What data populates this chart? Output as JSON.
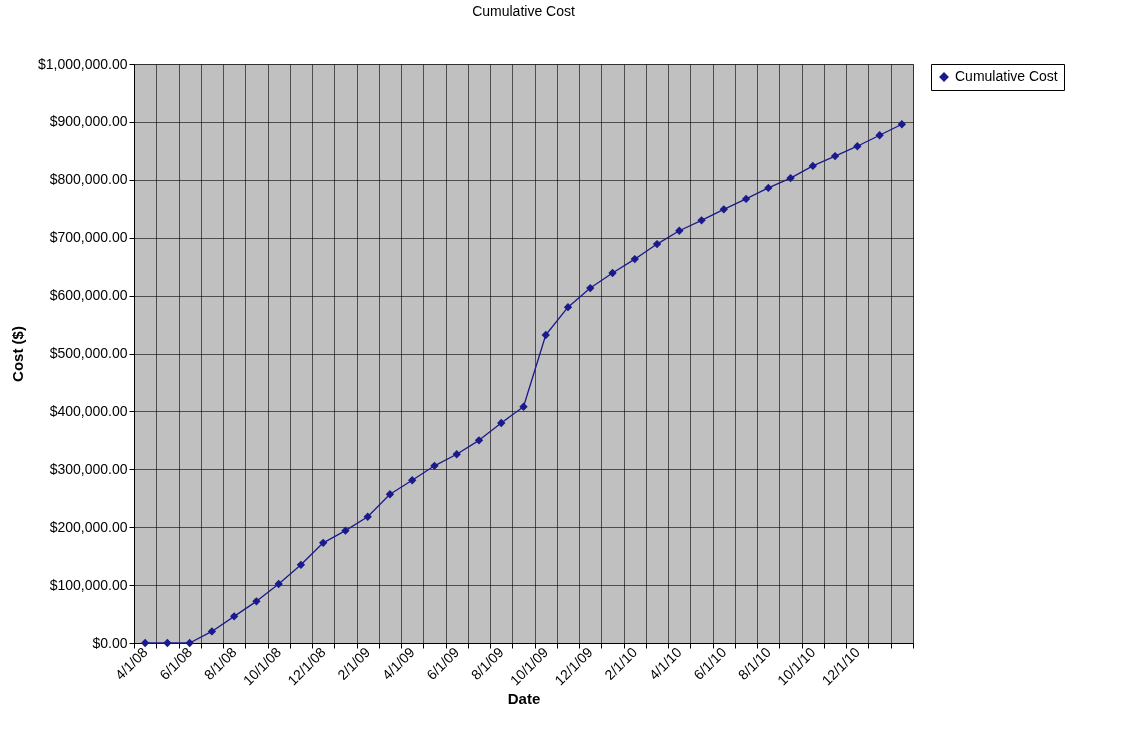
{
  "chart_data": {
    "type": "line",
    "title": "Cumulative Cost",
    "xlabel": "Date",
    "ylabel": "Cost ($)",
    "categories": [
      "4/1/08",
      null,
      "6/1/08",
      null,
      "8/1/08",
      null,
      "10/1/08",
      null,
      "12/1/08",
      null,
      "2/1/09",
      null,
      "4/1/09",
      null,
      "6/1/09",
      null,
      "8/1/09",
      null,
      "10/1/09",
      null,
      "12/1/09",
      null,
      "2/1/10",
      null,
      "4/1/10",
      null,
      "6/1/10",
      null,
      "8/1/10",
      null,
      "10/1/10",
      null,
      "12/1/10",
      null,
      null
    ],
    "series": [
      {
        "name": "Cumulative Cost",
        "color": "#1a1a8c",
        "values": [
          0,
          0,
          0,
          20000,
          46000,
          72000,
          102000,
          135000,
          173000,
          194000,
          218000,
          257000,
          281000,
          306000,
          326000,
          350000,
          380000,
          408000,
          532000,
          580000,
          613000,
          639000,
          663000,
          689000,
          712000,
          730000,
          749000,
          767000,
          786000,
          803000,
          824000,
          841000,
          858000,
          877000,
          896000
        ]
      }
    ],
    "ylim": [
      0,
      1000000
    ],
    "yticks": [
      {
        "value": 0,
        "label": "$0.00"
      },
      {
        "value": 100000,
        "label": "$100,000.00"
      },
      {
        "value": 200000,
        "label": "$200,000.00"
      },
      {
        "value": 300000,
        "label": "$300,000.00"
      },
      {
        "value": 400000,
        "label": "$400,000.00"
      },
      {
        "value": 500000,
        "label": "$500,000.00"
      },
      {
        "value": 600000,
        "label": "$600,000.00"
      },
      {
        "value": 700000,
        "label": "$700,000.00"
      },
      {
        "value": 800000,
        "label": "$800,000.00"
      },
      {
        "value": 900000,
        "label": "$900,000.00"
      },
      {
        "value": 1000000,
        "label": "$1,000,000.00"
      }
    ],
    "grid": true,
    "legend": "right",
    "marker": "diamond",
    "line_style": "solid"
  }
}
